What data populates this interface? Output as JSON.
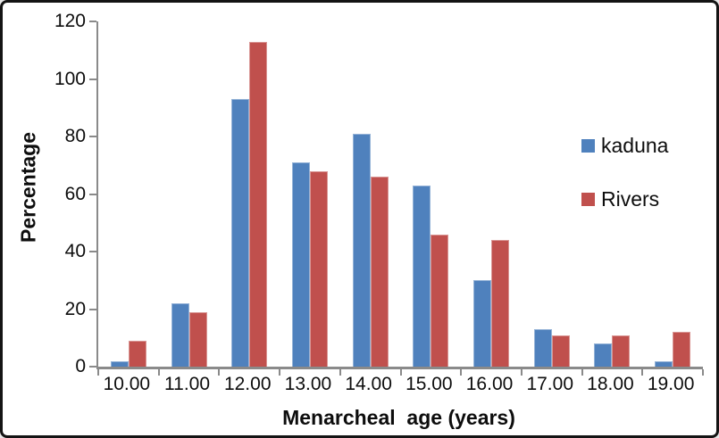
{
  "figure": {
    "background": "#ffffff",
    "frame_border_color": "#141414",
    "axis_color": "#8a8a8a",
    "text_color": "#0d0d0d"
  },
  "chart_data": {
    "type": "bar",
    "title": "",
    "xlabel": "Menarcheal  age (years)",
    "ylabel": "Percentage",
    "categories": [
      "10.00",
      "11.00",
      "12.00",
      "13.00",
      "14.00",
      "15.00",
      "16.00",
      "17.00",
      "18.00",
      "19.00"
    ],
    "series": [
      {
        "name": "kaduna",
        "color": "#4F81BD",
        "border_color": "#95B3D7",
        "values": [
          2,
          22,
          93,
          71,
          81,
          63,
          30,
          13,
          8,
          2
        ]
      },
      {
        "name": "Rivers",
        "color": "#C0504D",
        "border_color": "#D99694",
        "values": [
          9,
          19,
          113,
          68,
          66,
          46,
          44,
          11,
          11,
          12
        ]
      }
    ],
    "ylim": [
      0,
      120
    ],
    "yticks": [
      0,
      20,
      40,
      60,
      80,
      100,
      120
    ],
    "grid": false,
    "legend_position": "right-inside"
  }
}
